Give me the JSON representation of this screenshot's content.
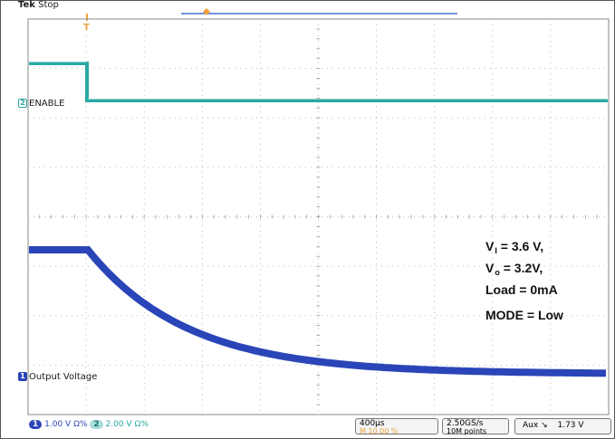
{
  "header": {
    "brand": "Tek",
    "state": "Stop"
  },
  "channels": {
    "ch2": {
      "label": "ENABLE",
      "marker": "2",
      "color": "#2aa9a4"
    },
    "ch1": {
      "label": "Output Voltage",
      "marker": "1",
      "color": "#2a45b8"
    }
  },
  "annotation": {
    "vi_main": "V",
    "vi_sub": "I",
    "vi_value": " = 3.6 V,",
    "vo_main": "V",
    "vo_sub": "o",
    "vo_value": " = 3.2V,",
    "load": "Load = 0mA",
    "mode": "MODE = Low"
  },
  "status_bar": {
    "ch1_marker": "1",
    "ch1_scale": "1.00 V",
    "ch1_coupling": "Ω%",
    "ch2_marker": "2",
    "ch2_scale": "2.00 V",
    "ch2_coupling": "Ω%",
    "timebase": "400µs",
    "position": "M 10.00 %",
    "sample_rate": "2.50GS/s",
    "record_length": "10M points",
    "trigger_source": "Aux",
    "trigger_slope": "↘",
    "trigger_level": "1.73 V"
  },
  "trigger_marker": {
    "label": "T",
    "color": "#f0a23a"
  }
}
